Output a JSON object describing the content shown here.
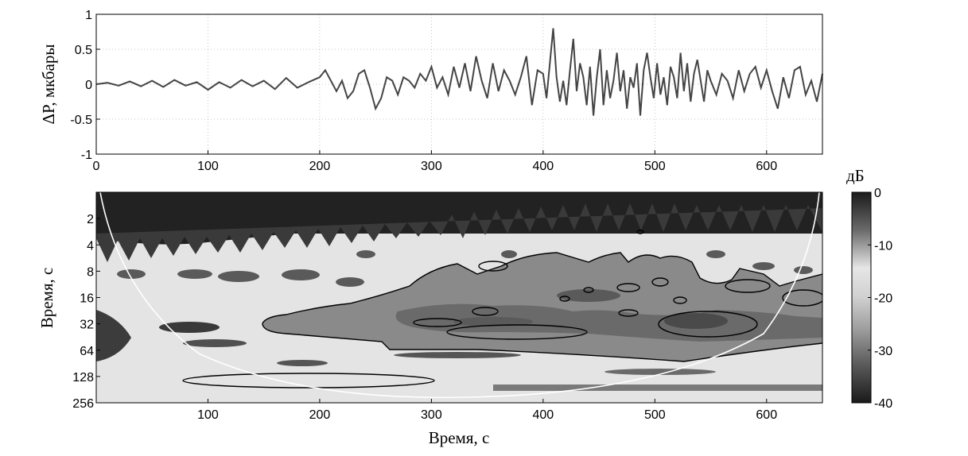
{
  "chart_data": [
    {
      "type": "line",
      "title": "",
      "xlabel": "",
      "ylabel": "ΔP, мкбары",
      "xlim": [
        0,
        650
      ],
      "ylim": [
        -1,
        1
      ],
      "xticks": [
        0,
        100,
        200,
        300,
        400,
        500,
        600
      ],
      "yticks": [
        1,
        0.5,
        0,
        -0.5,
        -1
      ],
      "ytick_labels": [
        "1",
        "0.5",
        "0",
        "-0.5",
        "-1"
      ],
      "grid": true,
      "line_color": "#444444",
      "series": [
        {
          "x": [
            0,
            10,
            20,
            30,
            40,
            50,
            60,
            70,
            80,
            90,
            100,
            110,
            120,
            130,
            140,
            150,
            160,
            170,
            180,
            190,
            200,
            205,
            210,
            215,
            220,
            225,
            230,
            235,
            240,
            245,
            250,
            255,
            260,
            265,
            270,
            275,
            280,
            285,
            290,
            295,
            300,
            305,
            310,
            315,
            320,
            325,
            330,
            335,
            340,
            345,
            350,
            355,
            360,
            365,
            370,
            375,
            380,
            385,
            390,
            395,
            400,
            403,
            406,
            409,
            412,
            415,
            418,
            421,
            424,
            427,
            430,
            433,
            436,
            439,
            442,
            445,
            448,
            451,
            454,
            457,
            460,
            463,
            466,
            469,
            472,
            475,
            478,
            481,
            484,
            487,
            490,
            493,
            496,
            499,
            502,
            505,
            508,
            511,
            514,
            517,
            520,
            523,
            526,
            529,
            532,
            535,
            538,
            541,
            544,
            547,
            550,
            555,
            560,
            565,
            570,
            575,
            580,
            585,
            590,
            595,
            600,
            605,
            610,
            615,
            620,
            625,
            630,
            635,
            640,
            645,
            650
          ],
          "y": [
            0,
            0.02,
            -0.02,
            0.04,
            -0.03,
            0.05,
            -0.04,
            0.06,
            -0.02,
            0.03,
            -0.08,
            0.03,
            -0.05,
            0.06,
            -0.03,
            0.05,
            -0.07,
            0.09,
            -0.05,
            0.03,
            0.1,
            0.2,
            0.05,
            -0.1,
            0.05,
            -0.2,
            -0.1,
            0.15,
            0.2,
            -0.05,
            -0.35,
            -0.2,
            0.1,
            0.05,
            -0.15,
            0.1,
            0.05,
            -0.05,
            0.15,
            0.05,
            0.25,
            -0.05,
            0.1,
            -0.15,
            0.25,
            -0.05,
            0.3,
            -0.1,
            0.4,
            0.05,
            -0.2,
            0.3,
            -0.1,
            0.2,
            0.05,
            -0.15,
            0.1,
            0.4,
            -0.3,
            0.2,
            0.15,
            -0.2,
            0.3,
            0.8,
            0.1,
            -0.25,
            0.05,
            -0.3,
            0.2,
            0.65,
            -0.1,
            0.3,
            0.1,
            -0.3,
            0.25,
            -0.45,
            0.1,
            0.5,
            -0.3,
            0.2,
            -0.2,
            0.05,
            0.45,
            -0.1,
            0.2,
            -0.35,
            0.1,
            -0.05,
            0.3,
            -0.45,
            0.2,
            0.45,
            0.1,
            -0.2,
            0.3,
            -0.15,
            0.1,
            -0.3,
            0.25,
            0.1,
            -0.2,
            0.45,
            -0.1,
            0.3,
            -0.25,
            0.15,
            0.35,
            0.05,
            -0.25,
            0.2,
            0.05,
            -0.15,
            0.15,
            0.05,
            -0.2,
            0.2,
            -0.1,
            0.15,
            0.25,
            -0.05,
            0.2,
            -0.1,
            -0.35,
            0.1,
            -0.2,
            0.2,
            0.25,
            -0.15,
            0.05,
            -0.25,
            0.15
          ]
        }
      ]
    },
    {
      "type": "heatmap",
      "title": "",
      "xlabel": "Время, с",
      "ylabel": "Время, с",
      "xlim": [
        0,
        650
      ],
      "xticks": [
        100,
        200,
        300,
        400,
        500,
        600
      ],
      "y_scale": "log2",
      "ylim": [
        256,
        1
      ],
      "yticks": [
        2,
        4,
        8,
        16,
        32,
        64,
        128,
        256
      ],
      "colorbar": {
        "label": "дБ",
        "ticks": [
          0,
          -10,
          -20,
          -30,
          -40
        ],
        "range": [
          -40,
          0
        ],
        "colormap": "gray"
      }
    }
  ]
}
